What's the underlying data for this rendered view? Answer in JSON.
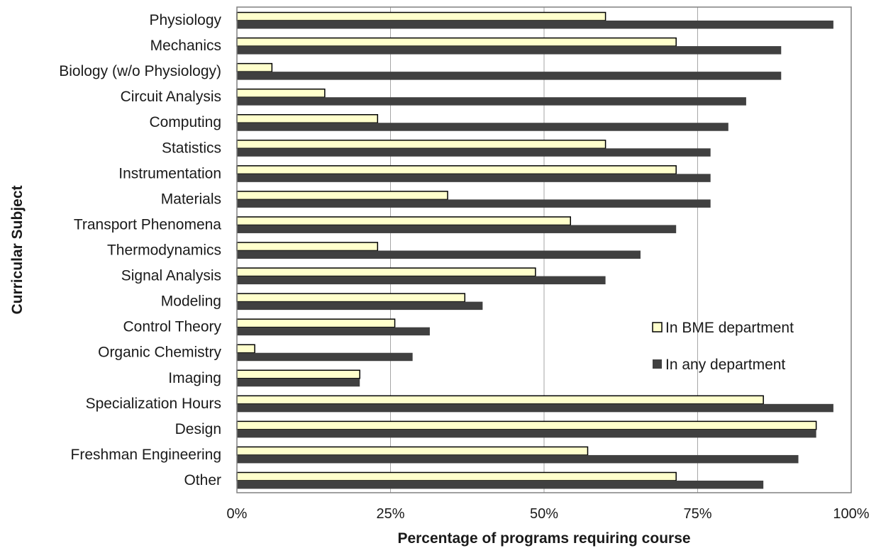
{
  "chart_data": {
    "type": "bar",
    "orientation": "horizontal",
    "categories": [
      "Physiology",
      "Mechanics",
      "Biology (w/o Physiology)",
      "Circuit Analysis",
      "Computing",
      "Statistics",
      "Instrumentation",
      "Materials",
      "Transport Phenomena",
      "Thermodynamics",
      "Signal Analysis",
      "Modeling",
      "Control Theory",
      "Organic Chemistry",
      "Imaging",
      "Specialization Hours",
      "Design",
      "Freshman Engineering",
      "Other"
    ],
    "series": [
      {
        "name": "In BME department",
        "color": "#ffffcc",
        "values": [
          60,
          71.5,
          5.7,
          14.3,
          22.9,
          60,
          71.5,
          34.3,
          54.3,
          22.9,
          48.6,
          37.1,
          25.7,
          2.9,
          20,
          85.7,
          94.3,
          57.1,
          71.5
        ]
      },
      {
        "name": "In any department",
        "color": "#404040",
        "values": [
          97.1,
          88.6,
          88.6,
          82.9,
          80,
          77.1,
          77.1,
          77.1,
          71.5,
          65.7,
          60,
          40,
          31.4,
          28.6,
          20,
          97.1,
          94.3,
          91.4,
          85.7
        ]
      }
    ],
    "xlabel": "Percentage of programs requiring course",
    "ylabel": "Curricular Subject",
    "xlim": [
      0,
      100
    ],
    "x_ticks": [
      "0%",
      "25%",
      "50%",
      "75%",
      "100%"
    ],
    "x_tick_values": [
      0,
      25,
      50,
      75,
      100
    ],
    "grid": "vertical",
    "legend_position": "lower-right"
  }
}
